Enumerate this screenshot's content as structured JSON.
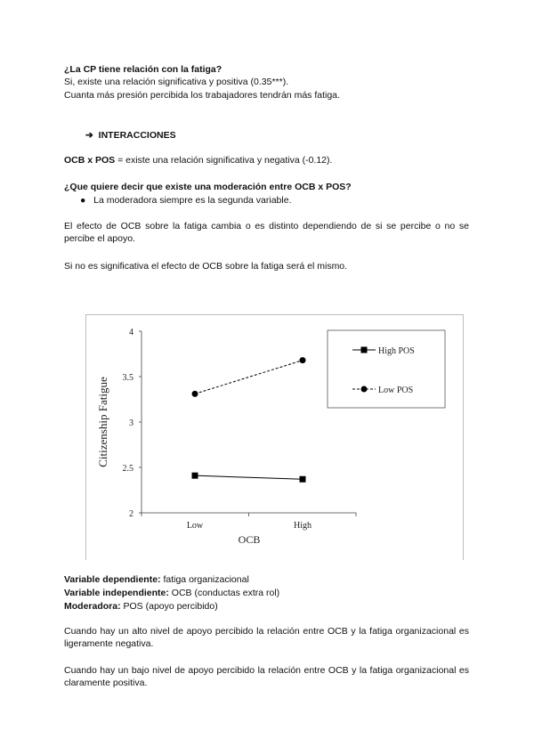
{
  "section1": {
    "question": "¿La CP tiene relación con la fatiga?",
    "answer1": "Si, existe una relación significativa y positiva (0.35***).",
    "answer2": "Cuanta más presión percibida los trabajadores tendrán más fatiga."
  },
  "section2": {
    "arrow": "➔",
    "heading": "INTERACCIONES",
    "ocb_pos_bold": "OCB x POS",
    "ocb_pos_text": " = existe una relación significativa y negativa (-0.12).",
    "question": "¿Que quiere decir que existe una moderación entre OCB x POS?",
    "bullet": "La moderadora siempre es la segunda variable.",
    "para1": "El efecto de OCB sobre la fatiga cambia o es distinto dependiendo de si se percibe o no se percibe el apoyo.",
    "para2": "Si no es significativa el efecto de OCB sobre la fatiga será el mismo."
  },
  "chart_data": {
    "type": "line",
    "categories": [
      "Low",
      "High"
    ],
    "xlabel": "OCB",
    "ylabel": "Citizenship Fatigue",
    "ylim": [
      2,
      4
    ],
    "yticks": [
      "2",
      "2.5",
      "3",
      "3.5",
      "4"
    ],
    "legend_position": "top-right",
    "grid": false,
    "series": [
      {
        "name": "High POS",
        "values": [
          2.41,
          2.37
        ],
        "style": "solid",
        "marker": "square",
        "color": "#000000"
      },
      {
        "name": "Low POS",
        "values": [
          3.31,
          3.68
        ],
        "style": "dashed",
        "marker": "circle",
        "color": "#000000"
      }
    ]
  },
  "section3": {
    "dep_label": "Variable dependiente:",
    "dep_value": " fatiga organizacional",
    "indep_label": "Variable independiente:",
    "indep_value": " OCB (conductas extra rol)",
    "mod_label": "Moderadora:",
    "mod_value": " POS (apoyo percibido)",
    "para_high": "Cuando hay un alto nivel de apoyo percibido la relación entre OCB y la fatiga organizacional es ligeramente negativa.",
    "para_low": "Cuando hay un bajo nivel de apoyo percibido la relación entre OCB y la fatiga organizacional es claramente positiva."
  }
}
